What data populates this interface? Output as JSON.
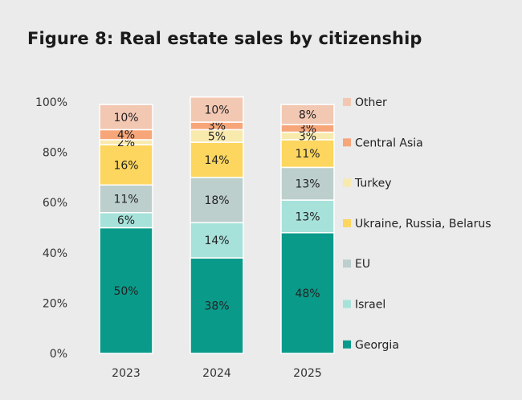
{
  "title": "Figure 8:  Real estate sales by citizenship",
  "chart_data": {
    "type": "bar",
    "stacked": true,
    "title": "Figure 8:  Real estate sales by citizenship",
    "xlabel": "",
    "ylabel": "",
    "ylim": [
      0,
      100
    ],
    "ytick_labels": [
      "0%",
      "20%",
      "40%",
      "60%",
      "80%",
      "100%"
    ],
    "categories": [
      "2023",
      "2024",
      "2025"
    ],
    "series": [
      {
        "name": "Georgia",
        "color": "#0a9a8a",
        "values": [
          50,
          38,
          48
        ],
        "labels": [
          "50%",
          "38%",
          "48%"
        ]
      },
      {
        "name": "Israel",
        "color": "#a6e2da",
        "values": [
          6,
          14,
          13
        ],
        "labels": [
          "6%",
          "14%",
          "13%"
        ]
      },
      {
        "name": "EU",
        "color": "#bccfcd",
        "values": [
          11,
          18,
          13
        ],
        "labels": [
          "11%",
          "18%",
          "13%"
        ]
      },
      {
        "name": "Ukraine, Russia, Belarus",
        "color": "#fcd65e",
        "values": [
          16,
          14,
          11
        ],
        "labels": [
          "16%",
          "14%",
          "11%"
        ]
      },
      {
        "name": "Turkey",
        "color": "#f8e9ad",
        "values": [
          2,
          5,
          3
        ],
        "labels": [
          "2%",
          "5%",
          "3%"
        ]
      },
      {
        "name": "Central Asia",
        "color": "#f7a67a",
        "values": [
          4,
          3,
          3
        ],
        "labels": [
          "4%",
          "3%",
          "3%"
        ]
      },
      {
        "name": "Other",
        "color": "#f3c8b3",
        "values": [
          10,
          10,
          8
        ],
        "labels": [
          "10%",
          "10%",
          "8%"
        ]
      }
    ],
    "legend_order": [
      "Other",
      "Central Asia",
      "Turkey",
      "Ukraine, Russia, Belarus",
      "EU",
      "Israel",
      "Georgia"
    ],
    "legend_position": "right"
  }
}
